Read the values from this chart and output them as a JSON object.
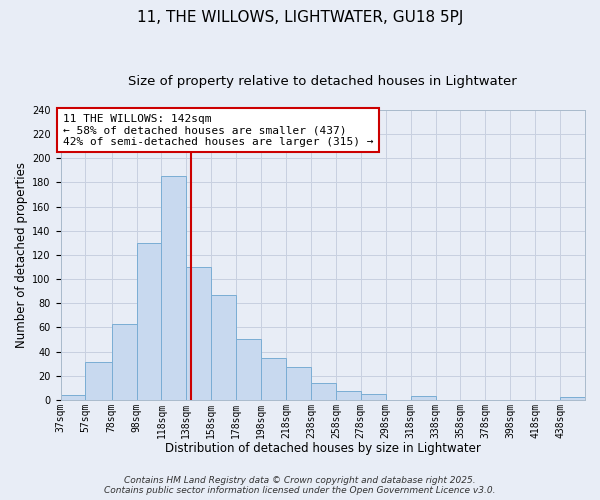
{
  "title": "11, THE WILLOWS, LIGHTWATER, GU18 5PJ",
  "subtitle": "Size of property relative to detached houses in Lightwater",
  "xlabel": "Distribution of detached houses by size in Lightwater",
  "ylabel": "Number of detached properties",
  "bin_labels": [
    "37sqm",
    "57sqm",
    "78sqm",
    "98sqm",
    "118sqm",
    "138sqm",
    "158sqm",
    "178sqm",
    "198sqm",
    "218sqm",
    "238sqm",
    "258sqm",
    "278sqm",
    "298sqm",
    "318sqm",
    "338sqm",
    "358sqm",
    "378sqm",
    "398sqm",
    "418sqm",
    "438sqm"
  ],
  "bin_edges": [
    37,
    57,
    78,
    98,
    118,
    138,
    158,
    178,
    198,
    218,
    238,
    258,
    278,
    298,
    318,
    338,
    358,
    378,
    398,
    418,
    438,
    458
  ],
  "counts": [
    4,
    31,
    63,
    130,
    185,
    110,
    87,
    50,
    35,
    27,
    14,
    7,
    5,
    0,
    3,
    0,
    0,
    0,
    0,
    0,
    2
  ],
  "bar_facecolor": "#c8d9ef",
  "bar_edgecolor": "#7aadd4",
  "vline_x": 142,
  "vline_color": "#cc0000",
  "annotation_line1": "11 THE WILLOWS: 142sqm",
  "annotation_line2": "← 58% of detached houses are smaller (437)",
  "annotation_line3": "42% of semi-detached houses are larger (315) →",
  "annotation_bbox_edgecolor": "#cc0000",
  "annotation_bbox_facecolor": "white",
  "ylim": [
    0,
    240
  ],
  "yticks": [
    0,
    20,
    40,
    60,
    80,
    100,
    120,
    140,
    160,
    180,
    200,
    220,
    240
  ],
  "grid_color": "#c8d0e0",
  "background_color": "#e8edf6",
  "footer_line1": "Contains HM Land Registry data © Crown copyright and database right 2025.",
  "footer_line2": "Contains public sector information licensed under the Open Government Licence v3.0.",
  "title_fontsize": 11,
  "subtitle_fontsize": 9.5,
  "axis_label_fontsize": 8.5,
  "tick_fontsize": 7,
  "footer_fontsize": 6.5,
  "annot_fontsize": 8
}
